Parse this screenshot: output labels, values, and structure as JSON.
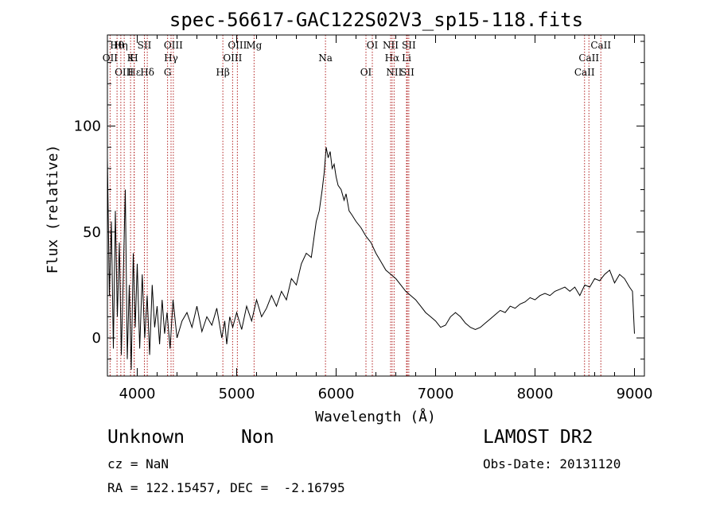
{
  "chart_data": {
    "type": "line",
    "title": "spec-56617-GAC122S02V3_sp15-118.fits",
    "xlabel": "Wavelength (Å)",
    "ylabel": "Flux (relative)",
    "xlim": [
      3700,
      9100
    ],
    "ylim": [
      -18,
      143
    ],
    "xticks": [
      4000,
      5000,
      6000,
      7000,
      8000,
      9000
    ],
    "yticks": [
      0,
      50,
      100
    ],
    "grid": false,
    "series": [
      {
        "x": [
          3700,
          3720,
          3740,
          3760,
          3780,
          3800,
          3820,
          3840,
          3860,
          3880,
          3900,
          3920,
          3940,
          3960,
          3980,
          4000,
          4025,
          4050,
          4075,
          4100,
          4125,
          4150,
          4175,
          4200,
          4225,
          4250,
          4275,
          4300,
          4330,
          4360,
          4400,
          4450,
          4500,
          4550,
          4600,
          4650,
          4700,
          4750,
          4800,
          4850,
          4880,
          4900,
          4930,
          4960,
          5000,
          5050,
          5100,
          5150,
          5200,
          5250,
          5300,
          5350,
          5400,
          5450,
          5500,
          5550,
          5600,
          5650,
          5700,
          5750,
          5800,
          5830,
          5860,
          5880,
          5900,
          5920,
          5940,
          5960,
          5980,
          6000,
          6020,
          6050,
          6080,
          6100,
          6130,
          6160,
          6200,
          6250,
          6300,
          6350,
          6400,
          6450,
          6500,
          6550,
          6600,
          6650,
          6700,
          6750,
          6800,
          6850,
          6900,
          6950,
          7000,
          7050,
          7100,
          7150,
          7200,
          7250,
          7300,
          7350,
          7400,
          7450,
          7500,
          7550,
          7600,
          7650,
          7700,
          7750,
          7800,
          7850,
          7900,
          7950,
          8000,
          8050,
          8100,
          8150,
          8200,
          8250,
          8300,
          8350,
          8400,
          8450,
          8500,
          8550,
          8600,
          8650,
          8700,
          8750,
          8800,
          8850,
          8900,
          8950,
          8980,
          9000
        ],
        "y": [
          85,
          20,
          55,
          -5,
          60,
          10,
          45,
          -8,
          30,
          70,
          -10,
          25,
          -15,
          40,
          5,
          35,
          -5,
          30,
          0,
          20,
          -8,
          25,
          5,
          15,
          -3,
          18,
          2,
          12,
          -5,
          18,
          0,
          8,
          12,
          5,
          15,
          3,
          10,
          6,
          14,
          0,
          8,
          -3,
          10,
          5,
          12,
          4,
          15,
          8,
          18,
          10,
          14,
          20,
          15,
          22,
          18,
          28,
          25,
          35,
          40,
          38,
          55,
          60,
          70,
          78,
          90,
          85,
          88,
          80,
          82,
          76,
          72,
          70,
          65,
          68,
          60,
          58,
          55,
          52,
          48,
          45,
          40,
          36,
          32,
          30,
          28,
          25,
          22,
          20,
          18,
          15,
          12,
          10,
          8,
          5,
          6,
          10,
          12,
          10,
          7,
          5,
          4,
          5,
          7,
          9,
          11,
          13,
          12,
          15,
          14,
          16,
          17,
          19,
          18,
          20,
          21,
          20,
          22,
          23,
          24,
          22,
          24,
          20,
          25,
          24,
          28,
          27,
          30,
          32,
          26,
          30,
          28,
          24,
          22,
          2
        ]
      }
    ],
    "lines": [
      {
        "name": "Hθ",
        "x": 3797
      },
      {
        "name": "K",
        "x": 3933
      },
      {
        "name": "Hδ",
        "x": 4101
      },
      {
        "name": "OIII",
        "x": 4363
      },
      {
        "name": "OII",
        "x": 3727
      },
      {
        "name": "Hε",
        "x": 3970
      },
      {
        "name": "SII",
        "x": 4072
      },
      {
        "name": "Hγ",
        "x": 4340
      },
      {
        "name": "OIII",
        "x": 3869
      },
      {
        "name": "Hη",
        "x": 3835
      },
      {
        "name": "H",
        "x": 3968
      },
      {
        "name": "G",
        "x": 4305
      },
      {
        "name": "OIII",
        "x": 5007
      },
      {
        "name": "OIII",
        "x": 4959
      },
      {
        "name": "Hβ",
        "x": 4861
      },
      {
        "name": "Mg",
        "x": 5175
      },
      {
        "name": "Na",
        "x": 5893
      },
      {
        "name": "OI",
        "x": 6300
      },
      {
        "name": "OI",
        "x": 6364
      },
      {
        "name": "Hα",
        "x": 6563
      },
      {
        "name": "SII",
        "x": 6716
      },
      {
        "name": "NII",
        "x": 6548
      },
      {
        "name": "Li",
        "x": 6708
      },
      {
        "name": "NII",
        "x": 6583
      },
      {
        "name": "SII",
        "x": 6731
      },
      {
        "name": "CaII",
        "x": 8542
      },
      {
        "name": "CaII",
        "x": 8498
      },
      {
        "name": "CaII",
        "x": 8662
      }
    ]
  },
  "info": {
    "object_class": "Unknown",
    "object_subclass": "Non",
    "survey": "LAMOST DR2",
    "cz": "cz = NaN",
    "obs_date": "Obs-Date: 20131120",
    "coords": "RA = 122.15457, DEC =  -2.16795"
  }
}
